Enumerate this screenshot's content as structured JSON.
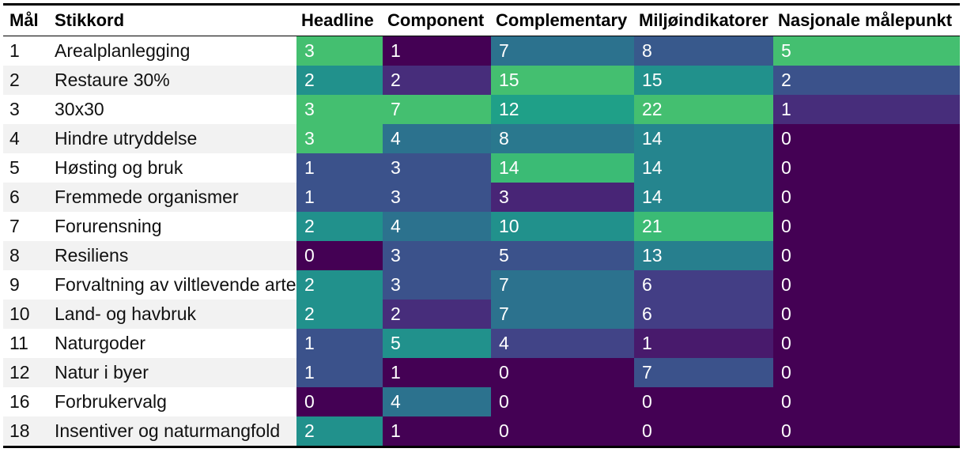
{
  "chart_data": {
    "type": "heatmap",
    "columns": [
      "Mål",
      "Stikkord",
      "Headline",
      "Component",
      "Complementary",
      "Miljøindikatorer",
      "Nasjonale målepunkt"
    ],
    "series_keys": [
      "Headline",
      "Component",
      "Complementary",
      "Miljøindikatorer",
      "Nasjonale målepunkt"
    ],
    "rows": [
      {
        "mal": "1",
        "stikkord": "Arealplanlegging",
        "values": [
          3,
          1,
          7,
          8,
          5
        ]
      },
      {
        "mal": "2",
        "stikkord": "Restaure 30%",
        "values": [
          2,
          2,
          15,
          15,
          2
        ]
      },
      {
        "mal": "3",
        "stikkord": "30x30",
        "values": [
          3,
          7,
          12,
          22,
          1
        ]
      },
      {
        "mal": "4",
        "stikkord": "Hindre utryddelse",
        "values": [
          3,
          4,
          8,
          14,
          0
        ]
      },
      {
        "mal": "5",
        "stikkord": "Høsting og bruk",
        "values": [
          1,
          3,
          14,
          14,
          0
        ]
      },
      {
        "mal": "6",
        "stikkord": "Fremmede organismer",
        "values": [
          1,
          3,
          3,
          14,
          0
        ]
      },
      {
        "mal": "7",
        "stikkord": "Forurensning",
        "values": [
          2,
          4,
          10,
          21,
          0
        ]
      },
      {
        "mal": "8",
        "stikkord": "Resiliens",
        "values": [
          0,
          3,
          5,
          13,
          0
        ]
      },
      {
        "mal": "9",
        "stikkord": "Forvaltning av viltlevende arter",
        "values": [
          2,
          3,
          7,
          6,
          0
        ]
      },
      {
        "mal": "10",
        "stikkord": "Land- og havbruk",
        "values": [
          2,
          2,
          7,
          6,
          0
        ]
      },
      {
        "mal": "11",
        "stikkord": "Naturgoder",
        "values": [
          1,
          5,
          4,
          1,
          0
        ]
      },
      {
        "mal": "12",
        "stikkord": "Natur i byer",
        "values": [
          1,
          1,
          0,
          7,
          0
        ]
      },
      {
        "mal": "16",
        "stikkord": "Forbrukervalg",
        "values": [
          0,
          4,
          0,
          0,
          0
        ]
      },
      {
        "mal": "18",
        "stikkord": "Insentiver og naturmangfold",
        "values": [
          2,
          1,
          0,
          0,
          0
        ]
      }
    ],
    "colorscale": "viridis",
    "colors": {
      "Headline": {
        "0": "#440154",
        "1": "#3b528b",
        "2": "#21918c",
        "3": "#44bf70"
      },
      "Component": {
        "1": "#440154",
        "2": "#472d7b",
        "3": "#3b528b",
        "4": "#2c728e",
        "5": "#21918c",
        "7": "#44bf70"
      },
      "Complementary": {
        "0": "#440154",
        "3": "#482576",
        "4": "#414487",
        "5": "#3b528b",
        "7": "#2c728e",
        "8": "#2a788e",
        "10": "#21918c",
        "12": "#1fa088",
        "14": "#3bbb75",
        "15": "#44bf70"
      },
      "Miljøindikatorer": {
        "0": "#440154",
        "1": "#481a6c",
        "6": "#433e85",
        "7": "#3b528b",
        "8": "#38598c",
        "13": "#277f8e",
        "14": "#25858e",
        "15": "#21918c",
        "21": "#3bbb75",
        "22": "#44bf70"
      },
      "Nasjonale målepunkt": {
        "0": "#440154",
        "1": "#472d7b",
        "2": "#3b528b",
        "5": "#44bf70"
      }
    }
  }
}
